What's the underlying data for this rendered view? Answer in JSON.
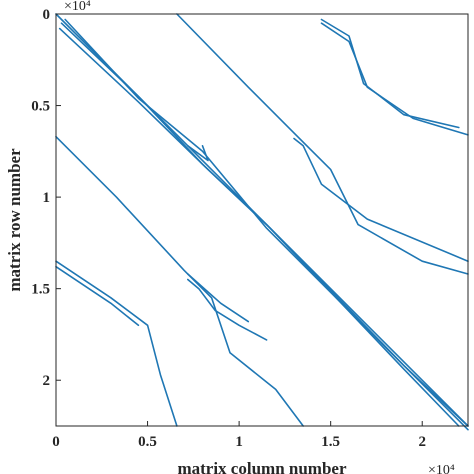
{
  "chart_data": {
    "type": "line",
    "title": "",
    "xlabel": "matrix column number",
    "ylabel": "matrix row number",
    "x_exponent_label": "×10⁴",
    "y_exponent_label": "×10⁴",
    "xlim": [
      0,
      2.25
    ],
    "ylim": [
      0,
      2.25
    ],
    "y_reversed": true,
    "x_ticks": [
      0,
      0.5,
      1,
      1.5,
      2
    ],
    "x_tick_labels": [
      "0",
      "0.5",
      "1",
      "1.5",
      "2"
    ],
    "y_ticks": [
      0,
      0.5,
      1,
      1.5,
      2
    ],
    "y_tick_labels": [
      "0",
      "0.5",
      "1",
      "1.5",
      "2"
    ],
    "grid": false,
    "legend": "none",
    "color": "#1f77b4",
    "series": [
      {
        "points": [
          [
            0,
            0
          ],
          [
            2.25,
            2.25
          ]
        ]
      },
      {
        "points": [
          [
            0.03,
            0.05
          ],
          [
            0.45,
            0.45
          ],
          [
            0.8,
            0.82
          ],
          [
            1.15,
            1.15
          ],
          [
            1.9,
            1.92
          ],
          [
            2.25,
            2.25
          ]
        ]
      },
      {
        "points": [
          [
            0.05,
            0.03
          ],
          [
            0.45,
            0.46
          ],
          [
            0.8,
            0.75
          ],
          [
            1.15,
            1.17
          ],
          [
            1.88,
            1.9
          ],
          [
            2.25,
            2.27
          ]
        ]
      },
      {
        "points": [
          [
            0.02,
            0.08
          ],
          [
            0.45,
            0.48
          ],
          [
            0.82,
            0.84
          ],
          [
            1.17,
            1.17
          ],
          [
            1.9,
            1.94
          ],
          [
            2.2,
            2.25
          ]
        ]
      },
      {
        "points": [
          [
            0.66,
            0
          ],
          [
            1.05,
            0.4
          ],
          [
            1.35,
            0.7
          ],
          [
            1.5,
            0.85
          ],
          [
            1.65,
            1.15
          ],
          [
            2.0,
            1.35
          ],
          [
            2.25,
            1.42
          ]
        ]
      },
      {
        "points": [
          [
            1.45,
            0.05
          ],
          [
            1.6,
            0.15
          ],
          [
            1.7,
            0.4
          ],
          [
            1.95,
            0.57
          ],
          [
            2.25,
            0.66
          ]
        ]
      },
      {
        "points": [
          [
            1.45,
            0.03
          ],
          [
            1.6,
            0.12
          ],
          [
            1.68,
            0.38
          ],
          [
            1.9,
            0.55
          ],
          [
            2.2,
            0.62
          ]
        ]
      },
      {
        "points": [
          [
            0,
            0.67
          ],
          [
            0.33,
            1.0
          ],
          [
            0.7,
            1.4
          ],
          [
            0.85,
            1.55
          ],
          [
            0.95,
            1.85
          ],
          [
            1.2,
            2.05
          ],
          [
            1.35,
            2.25
          ]
        ]
      },
      {
        "points": [
          [
            0.72,
            0.72
          ],
          [
            0.83,
            0.8
          ],
          [
            0.8,
            0.72
          ]
        ]
      },
      {
        "points": [
          [
            1.3,
            0.68
          ],
          [
            1.35,
            0.72
          ],
          [
            1.45,
            0.93
          ],
          [
            1.7,
            1.12
          ],
          [
            2.25,
            1.35
          ]
        ]
      },
      {
        "points": [
          [
            0,
            1.35
          ],
          [
            0.3,
            1.55
          ],
          [
            0.5,
            1.7
          ],
          [
            0.57,
            1.97
          ],
          [
            0.66,
            2.25
          ]
        ]
      },
      {
        "points": [
          [
            0,
            1.38
          ],
          [
            0.3,
            1.58
          ],
          [
            0.45,
            1.7
          ]
        ]
      },
      {
        "points": [
          [
            0.72,
            1.45
          ],
          [
            0.78,
            1.5
          ],
          [
            0.87,
            1.62
          ],
          [
            1.0,
            1.7
          ],
          [
            1.15,
            1.78
          ]
        ]
      },
      {
        "points": [
          [
            0.72,
            1.42
          ],
          [
            0.9,
            1.58
          ],
          [
            1.05,
            1.68
          ]
        ]
      }
    ]
  }
}
